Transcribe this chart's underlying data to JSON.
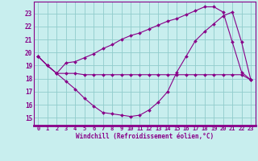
{
  "bg_color": "#c8eeee",
  "line_color": "#880088",
  "grid_color": "#90cccc",
  "xlabel": "Windchill (Refroidissement éolien,°C)",
  "x_ticks": [
    0,
    1,
    2,
    3,
    4,
    5,
    6,
    7,
    8,
    9,
    10,
    11,
    12,
    13,
    14,
    15,
    16,
    17,
    18,
    19,
    20,
    21,
    22,
    23
  ],
  "y_ticks": [
    15,
    16,
    17,
    18,
    19,
    20,
    21,
    22,
    23
  ],
  "ylim": [
    14.4,
    23.9
  ],
  "xlim": [
    -0.5,
    23.5
  ],
  "line1": [
    19.7,
    19.0,
    18.4,
    18.4,
    18.4,
    18.3,
    18.3,
    18.3,
    18.3,
    18.3,
    18.3,
    18.3,
    18.3,
    18.3,
    18.3,
    18.3,
    18.3,
    18.3,
    18.3,
    18.3,
    18.3,
    18.3,
    18.3,
    17.9
  ],
  "line2": [
    19.7,
    19.0,
    18.4,
    17.8,
    17.2,
    16.5,
    15.9,
    15.4,
    15.3,
    15.2,
    15.1,
    15.2,
    15.6,
    16.2,
    17.0,
    18.5,
    19.7,
    20.9,
    21.6,
    22.2,
    22.8,
    23.1,
    20.8,
    17.9
  ],
  "line3": [
    19.7,
    19.0,
    18.4,
    19.2,
    19.3,
    19.6,
    19.9,
    20.3,
    20.6,
    21.0,
    21.3,
    21.5,
    21.8,
    22.1,
    22.4,
    22.6,
    22.9,
    23.2,
    23.5,
    23.5,
    23.1,
    20.8,
    18.5,
    17.9
  ]
}
